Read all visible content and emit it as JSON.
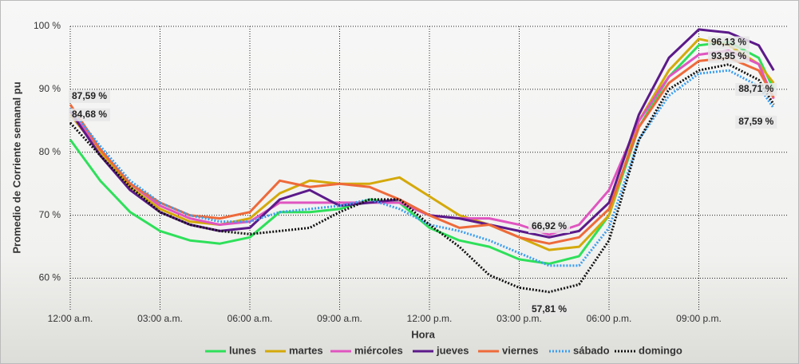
{
  "chart_data": {
    "type": "line",
    "x_label": "Hora",
    "y_label": "Promedio de Corriente semanal pu",
    "x": [
      0,
      1,
      2,
      3,
      4,
      5,
      6,
      7,
      8,
      9,
      10,
      11,
      12,
      13,
      14,
      15,
      16,
      17,
      18,
      19,
      20,
      21,
      22,
      23,
      23.5
    ],
    "xlim": [
      0,
      24
    ],
    "xticks": [
      {
        "value": 0,
        "label": "12:00 a.m."
      },
      {
        "value": 3,
        "label": "03:00 a.m."
      },
      {
        "value": 6,
        "label": "06:00 a.m."
      },
      {
        "value": 9,
        "label": "09:00 a.m."
      },
      {
        "value": 12,
        "label": "12:00 p.m."
      },
      {
        "value": 15,
        "label": "03:00 p.m."
      },
      {
        "value": 18,
        "label": "06:00 p.m."
      },
      {
        "value": 21,
        "label": "09:00 p.m."
      }
    ],
    "ylim": [
      55,
      100
    ],
    "yticks": [
      {
        "value": 60,
        "label": "60 %"
      },
      {
        "value": 70,
        "label": "70 %"
      },
      {
        "value": 80,
        "label": "80 %"
      },
      {
        "value": 90,
        "label": "90 %"
      },
      {
        "value": 100,
        "label": "100 %"
      }
    ],
    "grid": true,
    "legend": "bottom",
    "series": [
      {
        "name": "lunes",
        "color": "#2ee05a",
        "style": "solid",
        "values": [
          82,
          75.5,
          70.5,
          67.5,
          66,
          65.5,
          66.5,
          70.5,
          70.5,
          71,
          72.5,
          72,
          68,
          66,
          65,
          63,
          62.3,
          63.5,
          70,
          84,
          92,
          97,
          97.5,
          95,
          90
        ]
      },
      {
        "name": "martes",
        "color": "#d4a90a",
        "style": "solid",
        "values": [
          86,
          80,
          74.5,
          71,
          69,
          68.5,
          69.5,
          73.5,
          75.5,
          75,
          75,
          76,
          73,
          70,
          68.5,
          66.5,
          64.5,
          65,
          70,
          85,
          93,
          98,
          97,
          94,
          91
        ]
      },
      {
        "name": "miércoles",
        "color": "#e055c0",
        "style": "solid",
        "values": [
          86.5,
          80.5,
          75,
          71.5,
          69.5,
          68.5,
          69,
          72,
          72,
          72,
          72,
          72,
          70,
          69.5,
          69.5,
          68.5,
          66.92,
          68.5,
          74,
          85,
          92,
          95.5,
          96.13,
          94,
          88.5
        ],
        "value_labels": [
          null,
          null,
          null,
          null,
          null,
          null,
          null,
          null,
          null,
          null,
          null,
          null,
          null,
          null,
          null,
          null,
          "66,92 %",
          null,
          null,
          null,
          null,
          null,
          "96,13 %",
          null,
          null
        ]
      },
      {
        "name": "jueves",
        "color": "#5c1a8a",
        "style": "solid",
        "values": [
          86.5,
          79.5,
          74,
          70.5,
          68.5,
          67.5,
          68,
          72.5,
          74,
          71.5,
          72,
          72.5,
          70,
          69.5,
          68.5,
          67.5,
          66.5,
          67.5,
          72,
          86,
          95,
          99.5,
          99,
          97,
          93
        ]
      },
      {
        "name": "viernes",
        "color": "#ee6a3a",
        "style": "solid",
        "values": [
          87.59,
          80.5,
          75,
          72,
          70,
          69.5,
          70.5,
          75.5,
          74.5,
          75,
          74.5,
          72.5,
          70,
          68,
          68.5,
          66.5,
          65.5,
          66.5,
          71,
          84,
          91,
          94.5,
          95,
          93,
          88.71
        ],
        "value_labels": [
          "87,59 %",
          null,
          null,
          null,
          null,
          null,
          null,
          null,
          null,
          null,
          null,
          null,
          null,
          null,
          null,
          null,
          null,
          null,
          null,
          null,
          null,
          null,
          null,
          null,
          "88,71 %"
        ]
      },
      {
        "name": "sábado",
        "color": "#3a9ef0",
        "style": "dotted",
        "values": [
          87,
          81,
          75.5,
          72,
          70,
          69,
          69,
          70.5,
          71,
          71.5,
          72.5,
          71,
          68.5,
          67.5,
          66,
          64,
          62,
          62,
          68,
          82,
          89,
          92.5,
          93,
          90.5,
          87
        ]
      },
      {
        "name": "domingo",
        "color": "#111111",
        "style": "dotted",
        "values": [
          84.68,
          79.5,
          74.5,
          70.5,
          68.5,
          67.5,
          67,
          67.5,
          68,
          70.5,
          72.5,
          72.5,
          68.5,
          65,
          60.5,
          58.5,
          57.81,
          59,
          66,
          82,
          90,
          93,
          93.95,
          91.5,
          87.59
        ],
        "value_labels": [
          "84,68 %",
          null,
          null,
          null,
          null,
          null,
          null,
          null,
          null,
          null,
          null,
          null,
          null,
          null,
          null,
          null,
          "57,81 %",
          null,
          null,
          null,
          null,
          null,
          "93,95 %",
          null,
          "87,59 %"
        ]
      }
    ]
  }
}
